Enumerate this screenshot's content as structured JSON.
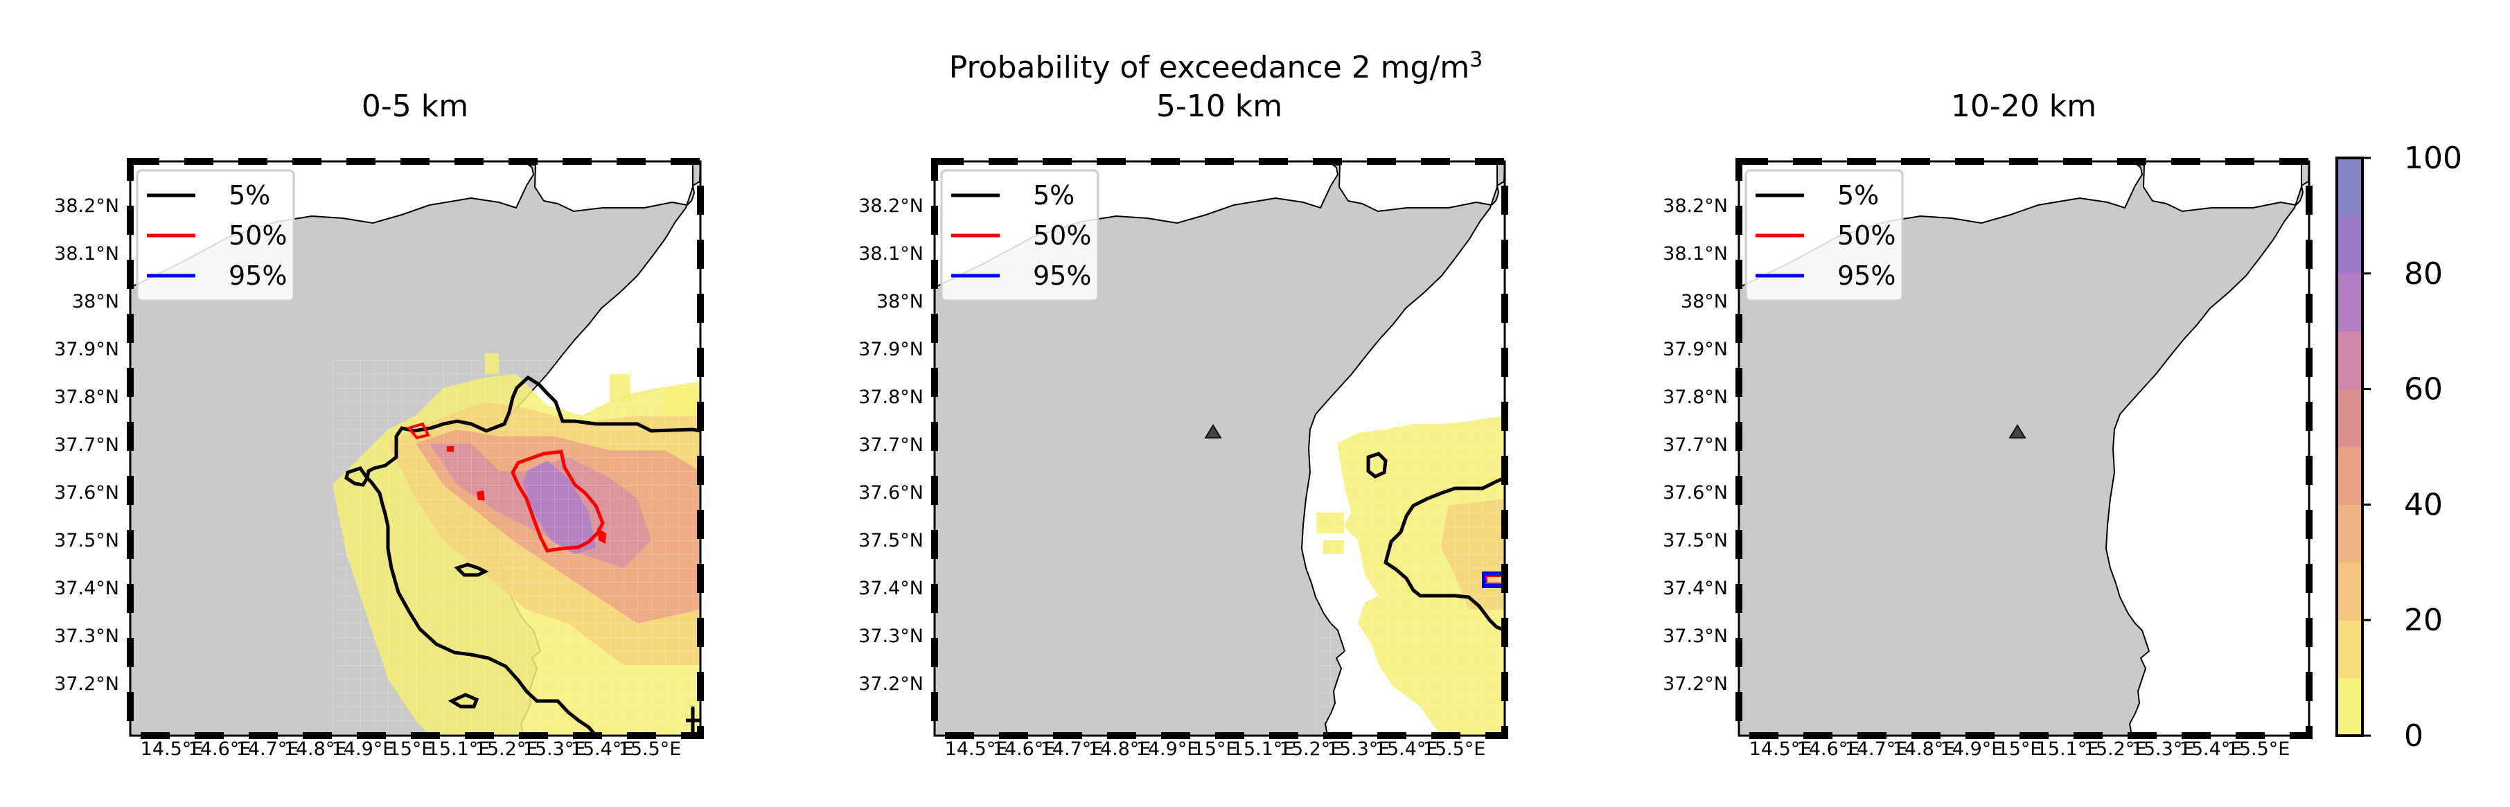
{
  "figure": {
    "suptitle_main": "Probability of exceedance 2 mg/m",
    "suptitle_sup": "3"
  },
  "panels": [
    {
      "title": "0-5 km"
    },
    {
      "title": "5-10 km"
    },
    {
      "title": "10-20 km"
    }
  ],
  "lat_ticks": [
    "38.2°N",
    "38.1°N",
    "38°N",
    "37.9°N",
    "37.8°N",
    "37.7°N",
    "37.6°N",
    "37.5°N",
    "37.4°N",
    "37.3°N",
    "37.2°N"
  ],
  "lon_ticks": [
    "14.5°E",
    "14.6°E",
    "14.7°E",
    "14.8°E",
    "14.9°E",
    "15°E",
    "15.1°E",
    "15.2°E",
    "15.3°E",
    "15.4°E",
    "15.5°E"
  ],
  "legend": [
    {
      "label": "5%",
      "color": "#000000"
    },
    {
      "label": "50%",
      "color": "#ff0000"
    },
    {
      "label": "95%",
      "color": "#0000ff"
    }
  ],
  "colorbar": {
    "ticks": [
      "100",
      "80",
      "60",
      "40",
      "20",
      "0"
    ],
    "min": 0,
    "max": 100,
    "colors": [
      "#f6f47a",
      "#f6dc7c",
      "#f5c680",
      "#f1b283",
      "#e9a086",
      "#db908f",
      "#cc85a6",
      "#b67ec2",
      "#9c79cb",
      "#8585c3"
    ]
  },
  "colors": {
    "land": "#cacaca",
    "sea": "#ffffff",
    "volcano": "#444444"
  }
}
